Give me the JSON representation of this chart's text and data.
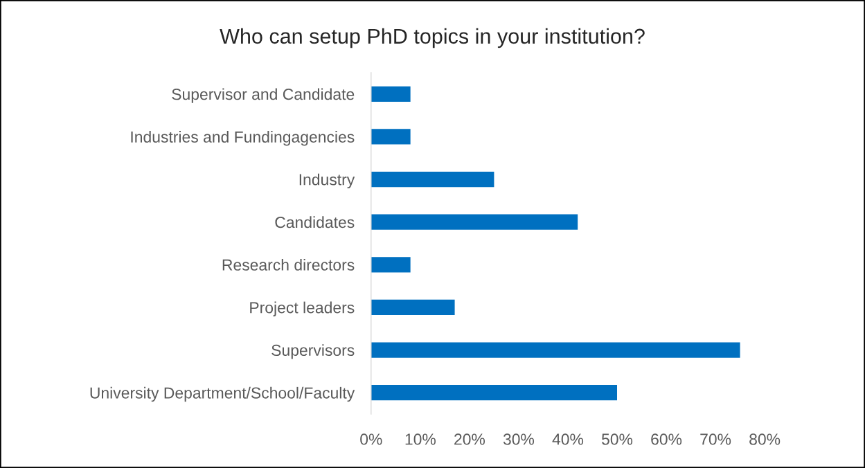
{
  "chart_data": {
    "type": "bar",
    "orientation": "horizontal",
    "title": "Who can setup PhD topics in your institution?",
    "categories": [
      "Supervisor and Candidate",
      "Industries and Fundingagencies",
      "Industry",
      "Candidates",
      "Research directors",
      "Project leaders",
      "Supervisors",
      "University Department/School/Faculty"
    ],
    "values": [
      8,
      8,
      25,
      42,
      8,
      17,
      75,
      50
    ],
    "color": "#0070c0",
    "xlim": [
      0,
      80
    ],
    "xticks": [
      {
        "value": 0,
        "label": "0%"
      },
      {
        "value": 10,
        "label": "10%"
      },
      {
        "value": 20,
        "label": "20%"
      },
      {
        "value": 30,
        "label": "30%"
      },
      {
        "value": 40,
        "label": "40%"
      },
      {
        "value": 50,
        "label": "50%"
      },
      {
        "value": 60,
        "label": "60%"
      },
      {
        "value": 70,
        "label": "70%"
      },
      {
        "value": 80,
        "label": "80%"
      }
    ],
    "grid": false,
    "legend": false
  }
}
